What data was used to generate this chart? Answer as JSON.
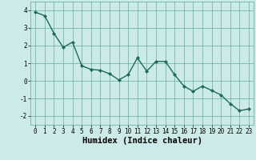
{
  "x": [
    0,
    1,
    2,
    3,
    4,
    5,
    6,
    7,
    8,
    9,
    10,
    11,
    12,
    13,
    14,
    15,
    16,
    17,
    18,
    19,
    20,
    21,
    22,
    23
  ],
  "y": [
    3.9,
    3.7,
    2.7,
    1.9,
    2.2,
    0.85,
    0.65,
    0.6,
    0.4,
    0.05,
    0.35,
    1.3,
    0.55,
    1.1,
    1.1,
    0.35,
    -0.3,
    -0.6,
    -0.3,
    -0.55,
    -0.8,
    -1.3,
    -1.7,
    -1.6
  ],
  "line_color": "#1a6b5a",
  "marker": "D",
  "marker_size": 2,
  "bg_color": "#cceae7",
  "grid_color": "#55a898",
  "xlabel": "Humidex (Indice chaleur)",
  "xlim": [
    -0.5,
    23.5
  ],
  "ylim": [
    -2.5,
    4.5
  ],
  "yticks": [
    -2,
    -1,
    0,
    1,
    2,
    3,
    4
  ],
  "xticks": [
    0,
    1,
    2,
    3,
    4,
    5,
    6,
    7,
    8,
    9,
    10,
    11,
    12,
    13,
    14,
    15,
    16,
    17,
    18,
    19,
    20,
    21,
    22,
    23
  ],
  "tick_fontsize": 5.5,
  "xlabel_fontsize": 7.5,
  "line_width": 1.0
}
